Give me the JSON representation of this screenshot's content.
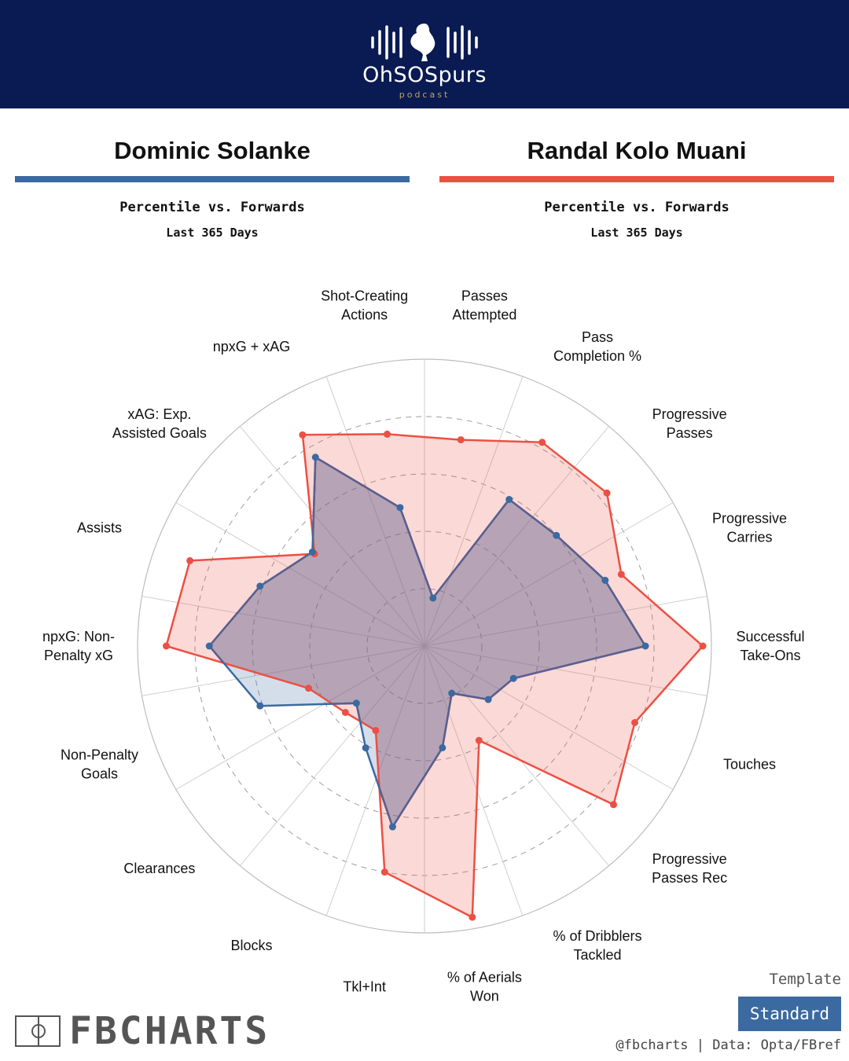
{
  "brand": {
    "podcast_name": "OhSOSpurs",
    "podcast_sub": "podcast"
  },
  "players": [
    {
      "name": "Dominic Solanke",
      "subtitle": "Percentile vs. Forwards",
      "period": "Last 365 Days"
    },
    {
      "name": "Randal Kolo Muani",
      "subtitle": "Percentile vs. Forwards",
      "period": "Last 365 Days"
    }
  ],
  "chart_data": {
    "type": "radar",
    "axis_range": [
      0,
      100
    ],
    "grid_levels": [
      20,
      40,
      60,
      80
    ],
    "labels": [
      [
        "Passes",
        "Attempted"
      ],
      [
        "Pass",
        "Completion %"
      ],
      [
        "Progressive",
        "Passes"
      ],
      [
        "Progressive",
        "Carries"
      ],
      [
        "Successful",
        "Take-Ons"
      ],
      [
        "Touches"
      ],
      [
        "Progressive",
        "Passes Rec"
      ],
      [
        "% of Dribblers",
        "Tackled"
      ],
      [
        "% of Aerials",
        "Won"
      ],
      [
        "Tkl+Int"
      ],
      [
        "Blocks"
      ],
      [
        "Clearances"
      ],
      [
        "Non-Penalty",
        "Goals"
      ],
      [
        "npxG: Non-",
        "Penalty xG"
      ],
      [
        "Assists"
      ],
      [
        "xAG: Exp.",
        "Assisted Goals"
      ],
      [
        "npxG + xAG"
      ],
      [
        "Shot-Creating",
        "Actions"
      ]
    ],
    "series": [
      {
        "values": [
          17,
          59,
          60,
          67,
          77,
          33,
          29,
          19,
          36,
          64,
          41,
          31,
          61,
          75,
          61,
          51,
          76,
          49
        ],
        "color": "#3b6aa0"
      },
      {
        "values": [
          73,
          82,
          83,
          73,
          97,
          78,
          86,
          38,
          96,
          80,
          34,
          36,
          43,
          90,
          87,
          50,
          85,
          75
        ],
        "color": "#ec5044"
      }
    ],
    "overlap_color": "#5d5e8e"
  },
  "footer": {
    "template_label": "Template",
    "template_value": "Standard",
    "source": "@fbcharts | Data: Opta/FBref",
    "brand": "FBCHARTS"
  }
}
